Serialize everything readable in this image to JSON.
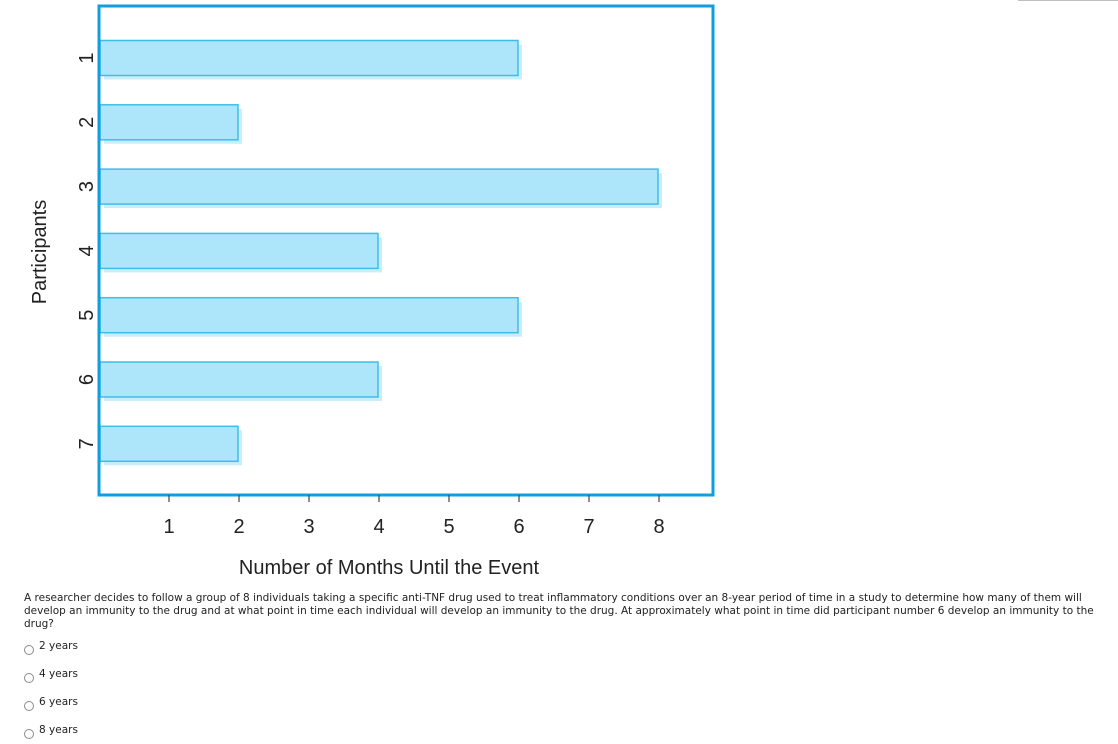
{
  "chart_data": {
    "type": "bar",
    "orientation": "horizontal",
    "categories": [
      "1",
      "2",
      "3",
      "4",
      "5",
      "6",
      "7"
    ],
    "values": [
      6,
      2,
      8,
      4,
      6,
      4,
      2
    ],
    "x_ticks": [
      "1",
      "2",
      "3",
      "4",
      "5",
      "6",
      "7",
      "8"
    ],
    "xlabel": "Number of Months Until the Event",
    "ylabel": "Participants",
    "xlim": [
      0,
      8
    ],
    "grid": false,
    "colors": {
      "bar_fill": "#ade6fb",
      "bar_stroke": "#3fbde8",
      "bar_shadow": "#c8eefc",
      "frame": "#0f9fe0"
    }
  },
  "question": {
    "text": "A researcher decides to follow a group of 8 individuals taking a specific anti-TNF drug used to treat inflammatory conditions over an 8-year period of time in a study to determine how many of them will develop an immunity to the drug and at what point in time each individual will develop an immunity to the drug. At approximately what point in time did participant number 6 develop an immunity to the drug?",
    "options": [
      {
        "label": "2 years"
      },
      {
        "label": "4 years"
      },
      {
        "label": "6 years"
      },
      {
        "label": "8 years"
      }
    ]
  }
}
